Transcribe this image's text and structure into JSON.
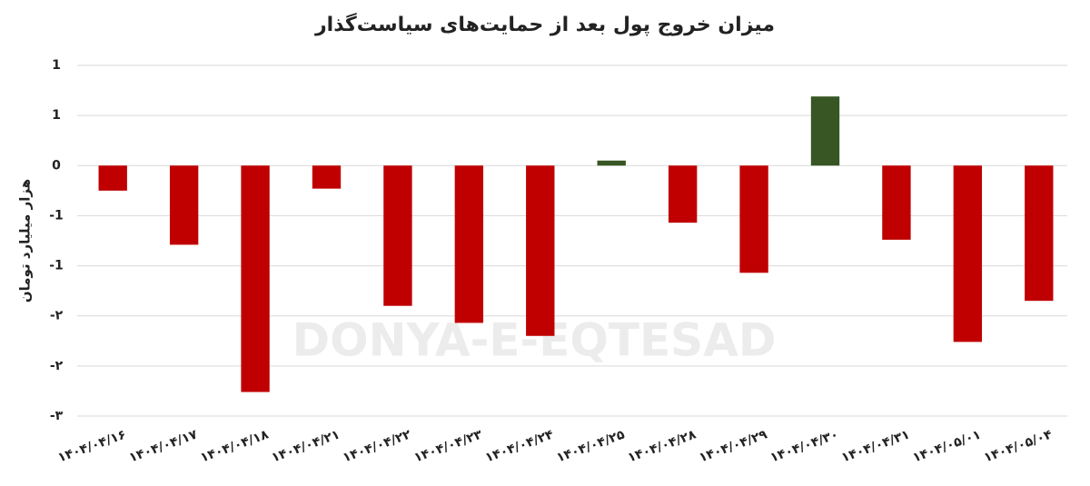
{
  "chart_data": {
    "type": "bar",
    "title": "میزان خروج پول بعد از حمایت‌های سیاست‌گذار",
    "y_label": "هزار میلیارد تومان",
    "watermark": "DONYA-E-EQTESAD",
    "categories": [
      "۱۴۰۴/۰۴/۱۶",
      "۱۴۰۴/۰۴/۱۷",
      "۱۴۰۴/۰۴/۱۸",
      "۱۴۰۴/۰۴/۲۱",
      "۱۴۰۴/۰۴/۲۲",
      "۱۴۰۴/۰۴/۲۳",
      "۱۴۰۴/۰۴/۲۴",
      "۱۴۰۴/۰۴/۲۵",
      "۱۴۰۴/۰۴/۲۸",
      "۱۴۰۴/۰۴/۲۹",
      "۱۴۰۴/۰۴/۳۰",
      "۱۴۰۴/۰۴/۳۱",
      "۱۴۰۴/۰۵/۰۱",
      "۱۴۰۴/۰۵/۰۴"
    ],
    "values": [
      -0.25,
      -0.79,
      -2.26,
      -0.23,
      -1.4,
      -1.57,
      -1.7,
      0.05,
      -0.57,
      -1.07,
      0.69,
      -0.74,
      -1.76,
      -1.35
    ],
    "colors": [
      "#c00000",
      "#c00000",
      "#c00000",
      "#c00000",
      "#c00000",
      "#c00000",
      "#c00000",
      "#375623",
      "#c00000",
      "#c00000",
      "#375623",
      "#c00000",
      "#c00000",
      "#c00000"
    ],
    "ylim": [
      -2.5,
      1
    ],
    "yticks": [
      {
        "value": 1,
        "label": "1"
      },
      {
        "value": 0.5,
        "label": "1"
      },
      0,
      {
        "value": -0.5,
        "label": "-1"
      },
      {
        "value": -1,
        "label": "-1"
      },
      {
        "value": -1.5,
        "label": "-۲"
      },
      {
        "value": -2,
        "label": "-۲"
      },
      {
        "value": -2.5,
        "label": "-۳"
      }
    ],
    "grid": true
  }
}
